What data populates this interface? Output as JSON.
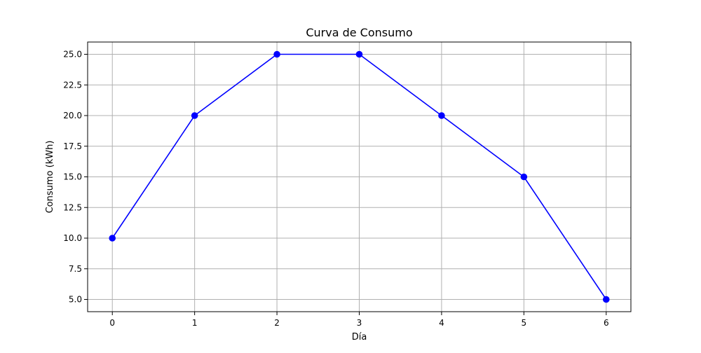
{
  "chart_data": {
    "type": "line",
    "title": "Curva de Consumo",
    "xlabel": "Día",
    "ylabel": "Consumo (kWh)",
    "x": [
      0,
      1,
      2,
      3,
      4,
      5,
      6
    ],
    "series": [
      {
        "name": "",
        "values": [
          10,
          20,
          25,
          25,
          20,
          15,
          5
        ],
        "color": "#0000ff",
        "marker": "circle"
      }
    ],
    "xlim": [
      -0.3,
      6.3
    ],
    "ylim": [
      4.0,
      26.0
    ],
    "xticks": [
      0,
      1,
      2,
      3,
      4,
      5,
      6
    ],
    "xtick_labels": [
      "0",
      "1",
      "2",
      "3",
      "4",
      "5",
      "6"
    ],
    "yticks": [
      5.0,
      7.5,
      10.0,
      12.5,
      15.0,
      17.5,
      20.0,
      22.5,
      25.0
    ],
    "ytick_labels": [
      "5.0",
      "7.5",
      "10.0",
      "12.5",
      "15.0",
      "17.5",
      "20.0",
      "22.5",
      "25.0"
    ],
    "grid": true,
    "legend": "none",
    "colors": {
      "grid": "#b0b0b0",
      "axes": "#000000",
      "line": "#0000ff"
    }
  }
}
